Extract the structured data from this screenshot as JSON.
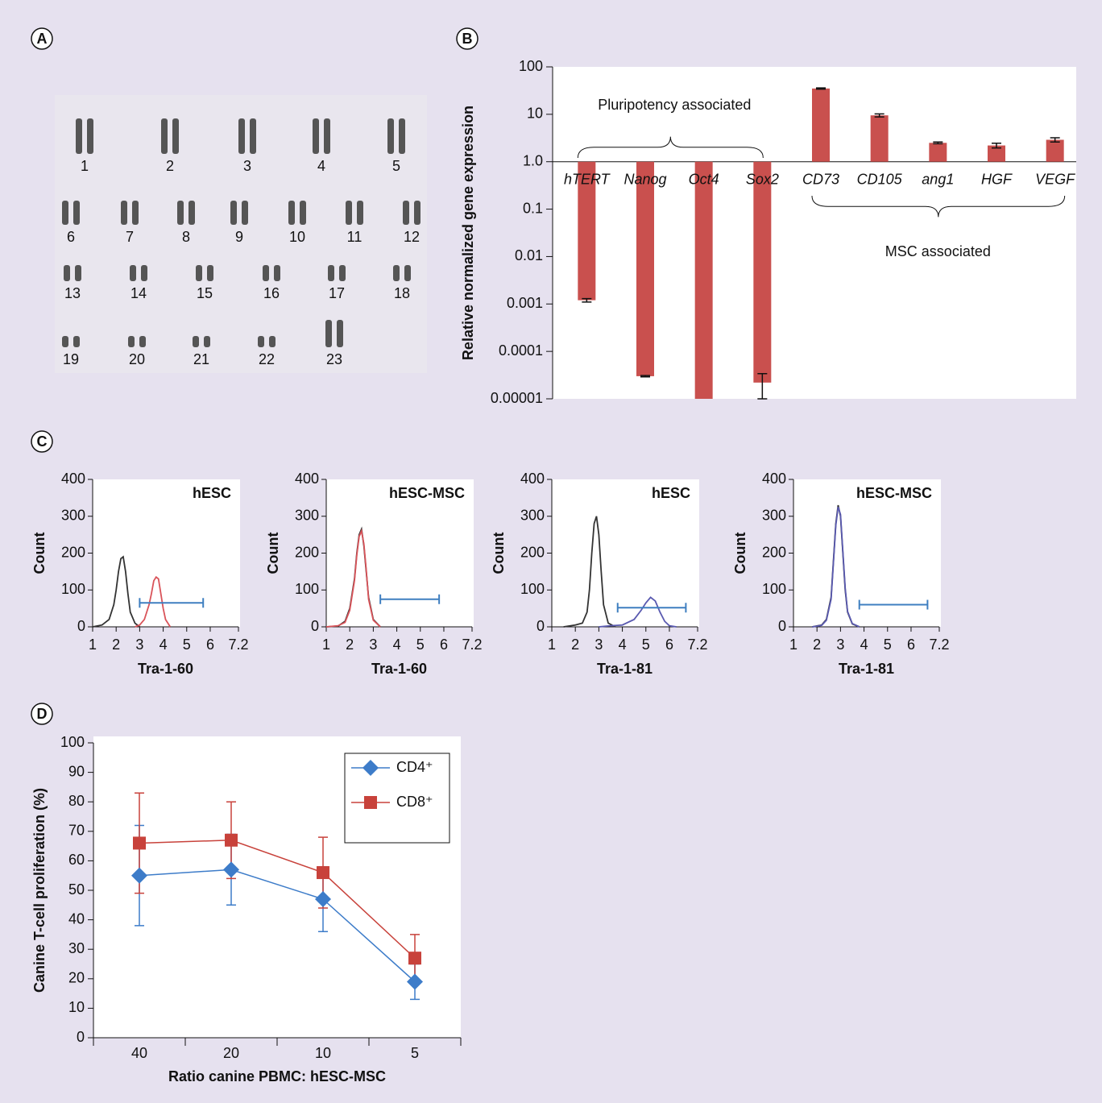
{
  "chart_data": [
    {
      "panel": "A",
      "type": "karyotype",
      "labels": [
        "1",
        "2",
        "3",
        "4",
        "5",
        "6",
        "7",
        "8",
        "9",
        "10",
        "11",
        "12",
        "13",
        "14",
        "15",
        "16",
        "17",
        "18",
        "19",
        "20",
        "21",
        "22",
        "23"
      ]
    },
    {
      "panel": "B",
      "type": "bar",
      "ylabel": "Relative normalized gene expression",
      "categories": [
        "hTERT",
        "Nanog",
        "Oct4",
        "Sox2",
        "CD73",
        "CD105",
        "ang1",
        "HGF",
        "VEGF"
      ],
      "values": [
        0.0012,
        3e-05,
        1e-05,
        2.2e-05,
        35,
        9.5,
        2.5,
        2.2,
        2.9
      ],
      "errors": [
        0.0001,
        1e-06,
        0,
        1.2e-05,
        1,
        0.7,
        0.1,
        0.25,
        0.3
      ],
      "color": "#c9504e",
      "log": true,
      "ylim": [
        1e-05,
        100
      ],
      "yticks": [
        100,
        10,
        {
          "value": 1,
          "label": "1.0"
        },
        0.1,
        0.01,
        0.001,
        0.0001,
        1e-05
      ],
      "annotations": [
        "Pluripotency associated",
        "MSC associated"
      ]
    },
    {
      "panel": "C",
      "type": "density",
      "title": "hESC",
      "xlabel": "Tra-1-60",
      "ylabel": "Count",
      "xlim": [
        1,
        7.2
      ],
      "xticks": [
        1,
        2,
        3,
        4,
        5,
        6,
        7.2
      ],
      "ylim": [
        0,
        400
      ],
      "yticks": [
        0,
        100,
        200,
        300,
        400
      ],
      "series": [
        {
          "color": "#333333",
          "x": [
            1,
            1.4,
            1.7,
            1.9,
            2.0,
            2.1,
            2.2,
            2.3,
            2.4,
            2.5,
            2.6,
            2.8,
            3.0
          ],
          "values": [
            0,
            5,
            20,
            60,
            100,
            150,
            185,
            190,
            150,
            90,
            40,
            10,
            0
          ]
        },
        {
          "color": "#d9545a",
          "x": [
            2.8,
            3.0,
            3.2,
            3.4,
            3.5,
            3.6,
            3.7,
            3.8,
            3.9,
            4.0,
            4.1,
            4.3
          ],
          "values": [
            0,
            5,
            20,
            60,
            90,
            125,
            135,
            130,
            90,
            50,
            20,
            0
          ]
        }
      ],
      "gate": {
        "x": [
          3,
          5.7
        ],
        "y": 65
      },
      "gate_color": "#3f7fc0"
    },
    {
      "type": "density",
      "title": "hESC-MSC",
      "xlabel": "Tra-1-60",
      "ylabel": "Count",
      "xlim": [
        1,
        7.2
      ],
      "xticks": [
        1,
        2,
        3,
        4,
        5,
        6,
        7.2
      ],
      "ylim": [
        0,
        400
      ],
      "yticks": [
        0,
        100,
        200,
        300,
        400
      ],
      "series": [
        {
          "color": "#333333",
          "x": [
            1,
            1.5,
            1.8,
            2.0,
            2.2,
            2.3,
            2.4,
            2.5,
            2.6,
            2.7,
            2.8,
            3.0,
            3.3
          ],
          "values": [
            0,
            2,
            15,
            50,
            130,
            200,
            250,
            265,
            220,
            150,
            80,
            20,
            0
          ]
        },
        {
          "color": "#d9545a",
          "x": [
            1,
            1.5,
            1.8,
            2.0,
            2.2,
            2.3,
            2.4,
            2.5,
            2.6,
            2.7,
            2.8,
            3.0,
            3.3
          ],
          "values": [
            0,
            3,
            12,
            45,
            125,
            195,
            245,
            260,
            225,
            155,
            75,
            18,
            0
          ]
        }
      ],
      "gate": {
        "x": [
          3.3,
          5.8
        ],
        "y": 75
      },
      "gate_color": "#3f7fc0"
    },
    {
      "type": "density",
      "title": "hESC",
      "xlabel": "Tra-1-81",
      "ylabel": "Count",
      "xlim": [
        1,
        7.2
      ],
      "xticks": [
        1,
        2,
        3,
        4,
        5,
        6,
        7.2
      ],
      "ylim": [
        0,
        400
      ],
      "yticks": [
        0,
        100,
        200,
        300,
        400
      ],
      "series": [
        {
          "color": "#333333",
          "x": [
            1.5,
            2.0,
            2.3,
            2.5,
            2.6,
            2.7,
            2.8,
            2.9,
            3.0,
            3.1,
            3.2,
            3.4,
            3.7
          ],
          "values": [
            0,
            5,
            10,
            40,
            100,
            200,
            280,
            300,
            250,
            150,
            60,
            10,
            0
          ]
        },
        {
          "color": "#5a5ab0",
          "x": [
            3.0,
            3.5,
            4.0,
            4.5,
            4.8,
            5.0,
            5.2,
            5.4,
            5.6,
            5.8,
            6.0,
            6.3
          ],
          "values": [
            0,
            3,
            5,
            20,
            45,
            65,
            80,
            70,
            40,
            15,
            3,
            0
          ]
        }
      ],
      "gate": {
        "x": [
          3.8,
          6.7
        ],
        "y": 52
      },
      "gate_color": "#3f7fc0"
    },
    {
      "type": "density",
      "title": "hESC-MSC",
      "xlabel": "Tra-1-81",
      "ylabel": "Count",
      "xlim": [
        1,
        7.2
      ],
      "xticks": [
        1,
        2,
        3,
        4,
        5,
        6,
        7.2
      ],
      "ylim": [
        0,
        400
      ],
      "yticks": [
        0,
        100,
        200,
        300,
        400
      ],
      "series": [
        {
          "color": "#333333",
          "x": [
            1.8,
            2.2,
            2.4,
            2.6,
            2.7,
            2.8,
            2.9,
            3.0,
            3.1,
            3.2,
            3.3,
            3.5,
            3.8
          ],
          "values": [
            0,
            5,
            20,
            80,
            180,
            280,
            330,
            300,
            200,
            100,
            40,
            8,
            0
          ]
        },
        {
          "color": "#5a5ab0",
          "x": [
            1.8,
            2.2,
            2.4,
            2.6,
            2.7,
            2.8,
            2.9,
            3.0,
            3.1,
            3.2,
            3.3,
            3.5,
            3.8
          ],
          "values": [
            0,
            4,
            18,
            75,
            175,
            275,
            325,
            305,
            205,
            105,
            42,
            9,
            0
          ]
        }
      ],
      "gate": {
        "x": [
          3.8,
          6.7
        ],
        "y": 60
      },
      "gate_color": "#3f7fc0"
    },
    {
      "panel": "D",
      "type": "line",
      "xlabel": "Ratio canine PBMC: hESC-MSC",
      "ylabel": "Canine T-cell proliferation (%)",
      "categories": [
        "40",
        "20",
        "10",
        "5"
      ],
      "ylim": [
        0,
        100
      ],
      "yticks": [
        0,
        10,
        20,
        30,
        40,
        50,
        60,
        70,
        80,
        90,
        100
      ],
      "legend": "top-right",
      "series": [
        {
          "name": "CD4⁺",
          "color": "#3d7cc9",
          "marker": "diamond",
          "values": [
            55,
            57,
            47,
            19
          ],
          "errors": [
            17,
            12,
            11,
            6
          ]
        },
        {
          "name": "CD8⁺",
          "color": "#c8423b",
          "marker": "square",
          "values": [
            66,
            67,
            56,
            27
          ],
          "errors": [
            17,
            13,
            12,
            8
          ]
        }
      ]
    }
  ]
}
